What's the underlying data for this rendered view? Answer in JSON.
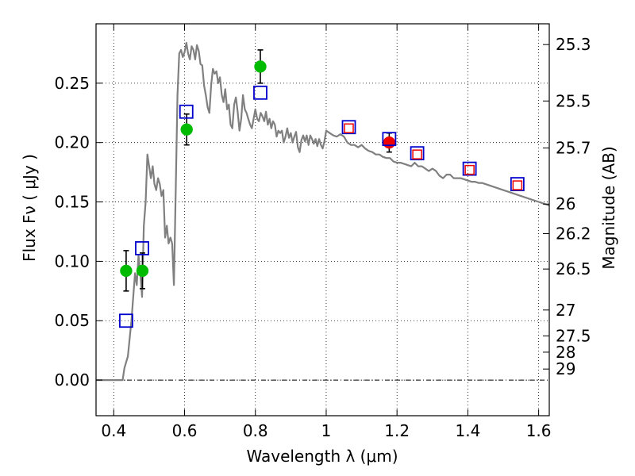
{
  "chart_data": {
    "type": "scatter",
    "title": "",
    "xlabel": "Wavelength  λ (μm)",
    "ylabel": "Flux  Fν ( μJy )",
    "y2label": "Magnitude (AB)",
    "xlim": [
      0.35,
      1.63
    ],
    "ylim": [
      -0.03,
      0.3
    ],
    "grid": true,
    "x_ticks": [
      0.4,
      0.6,
      0.8,
      1.0,
      1.2,
      1.4,
      1.6
    ],
    "x_tick_labels": [
      "0.4",
      "0.6",
      "0.8",
      "1",
      "1.2",
      "1.4",
      "1.6"
    ],
    "y_ticks": [
      0.0,
      0.05,
      0.1,
      0.15,
      0.2,
      0.25
    ],
    "y_tick_labels": [
      "0.00",
      "0.05",
      "0.10",
      "0.15",
      "0.20",
      "0.25"
    ],
    "y2_ticks": [
      {
        "label": "25.3",
        "flux": 0.2825
      },
      {
        "label": "25.5",
        "flux": 0.235
      },
      {
        "label": "25.7",
        "flux": 0.1954
      },
      {
        "label": "26",
        "flux": 0.1482
      },
      {
        "label": "26.2",
        "flux": 0.1233
      },
      {
        "label": "26.5",
        "flux": 0.0935
      },
      {
        "label": "27",
        "flux": 0.059
      },
      {
        "label": "27.5",
        "flux": 0.0372
      },
      {
        "label": "28",
        "flux": 0.0235
      },
      {
        "label": "29",
        "flux": 0.0093
      }
    ],
    "series": [
      {
        "type": "line",
        "color": "#808080",
        "x": [
          0.35,
          0.42,
          0.425,
          0.43,
          0.44,
          0.45,
          0.46,
          0.465,
          0.47,
          0.475,
          0.48,
          0.485,
          0.49,
          0.495,
          0.5,
          0.505,
          0.51,
          0.515,
          0.52,
          0.525,
          0.53,
          0.535,
          0.54,
          0.545,
          0.55,
          0.555,
          0.56,
          0.565,
          0.57,
          0.575,
          0.58,
          0.585,
          0.59,
          0.595,
          0.6,
          0.605,
          0.61,
          0.615,
          0.62,
          0.625,
          0.63,
          0.635,
          0.64,
          0.645,
          0.65,
          0.655,
          0.66,
          0.665,
          0.67,
          0.675,
          0.68,
          0.685,
          0.69,
          0.695,
          0.7,
          0.705,
          0.71,
          0.715,
          0.72,
          0.725,
          0.73,
          0.735,
          0.74,
          0.745,
          0.75,
          0.755,
          0.76,
          0.765,
          0.77,
          0.775,
          0.78,
          0.785,
          0.79,
          0.795,
          0.8,
          0.805,
          0.81,
          0.815,
          0.82,
          0.825,
          0.83,
          0.835,
          0.84,
          0.845,
          0.85,
          0.855,
          0.86,
          0.865,
          0.87,
          0.875,
          0.88,
          0.885,
          0.89,
          0.895,
          0.9,
          0.905,
          0.91,
          0.915,
          0.92,
          0.925,
          0.93,
          0.935,
          0.94,
          0.945,
          0.95,
          0.955,
          0.96,
          0.965,
          0.97,
          0.975,
          0.98,
          0.985,
          0.99,
          0.995,
          1.0,
          1.01,
          1.02,
          1.03,
          1.04,
          1.05,
          1.06,
          1.07,
          1.08,
          1.09,
          1.1,
          1.11,
          1.12,
          1.13,
          1.14,
          1.15,
          1.16,
          1.17,
          1.18,
          1.19,
          1.2,
          1.21,
          1.22,
          1.23,
          1.24,
          1.25,
          1.26,
          1.27,
          1.28,
          1.29,
          1.3,
          1.31,
          1.32,
          1.33,
          1.34,
          1.35,
          1.36,
          1.37,
          1.38,
          1.39,
          1.4,
          1.41,
          1.42,
          1.43,
          1.44,
          1.45,
          1.46,
          1.47,
          1.48,
          1.49,
          1.5,
          1.51,
          1.52,
          1.53,
          1.54,
          1.55,
          1.56,
          1.57,
          1.58,
          1.59,
          1.6,
          1.61,
          1.62,
          1.63
        ],
        "y": [
          0.0,
          0.0,
          0.0,
          0.01,
          0.02,
          0.05,
          0.09,
          0.08,
          0.105,
          0.09,
          0.07,
          0.13,
          0.15,
          0.19,
          0.18,
          0.17,
          0.18,
          0.165,
          0.16,
          0.17,
          0.165,
          0.155,
          0.16,
          0.12,
          0.13,
          0.115,
          0.12,
          0.115,
          0.08,
          0.16,
          0.24,
          0.275,
          0.278,
          0.272,
          0.276,
          0.284,
          0.275,
          0.27,
          0.281,
          0.278,
          0.27,
          0.282,
          0.277,
          0.266,
          0.265,
          0.248,
          0.24,
          0.23,
          0.225,
          0.248,
          0.262,
          0.258,
          0.26,
          0.25,
          0.255,
          0.24,
          0.234,
          0.245,
          0.228,
          0.232,
          0.215,
          0.212,
          0.232,
          0.238,
          0.226,
          0.21,
          0.22,
          0.24,
          0.228,
          0.225,
          0.22,
          0.215,
          0.212,
          0.22,
          0.228,
          0.22,
          0.218,
          0.225,
          0.222,
          0.218,
          0.226,
          0.215,
          0.22,
          0.212,
          0.218,
          0.215,
          0.205,
          0.21,
          0.208,
          0.21,
          0.2,
          0.205,
          0.212,
          0.204,
          0.208,
          0.2,
          0.205,
          0.209,
          0.196,
          0.192,
          0.202,
          0.206,
          0.201,
          0.206,
          0.198,
          0.206,
          0.203,
          0.199,
          0.203,
          0.197,
          0.203,
          0.198,
          0.195,
          0.201,
          0.21,
          0.208,
          0.206,
          0.205,
          0.207,
          0.205,
          0.2,
          0.198,
          0.198,
          0.196,
          0.198,
          0.195,
          0.193,
          0.192,
          0.19,
          0.19,
          0.188,
          0.187,
          0.187,
          0.184,
          0.183,
          0.183,
          0.182,
          0.181,
          0.18,
          0.183,
          0.18,
          0.18,
          0.178,
          0.176,
          0.178,
          0.176,
          0.172,
          0.17,
          0.173,
          0.173,
          0.17,
          0.17,
          0.17,
          0.169,
          0.168,
          0.167,
          0.167,
          0.166,
          0.166,
          0.165,
          0.164,
          0.163,
          0.162,
          0.161,
          0.16,
          0.159,
          0.158,
          0.157,
          0.156,
          0.155,
          0.154,
          0.153,
          0.152,
          0.151,
          0.15,
          0.149,
          0.148,
          0.147
        ]
      },
      {
        "type": "scatter",
        "marker": "circle",
        "color": "#00bb00",
        "x": [
          0.435,
          0.481,
          0.606,
          0.814
        ],
        "y": [
          0.092,
          0.092,
          0.211,
          0.264
        ],
        "yerr": [
          0.017,
          0.015,
          0.013,
          0.014
        ]
      },
      {
        "type": "scatter",
        "marker": "circle",
        "color": "#ee0000",
        "x": [
          1.178
        ],
        "y": [
          0.2
        ],
        "yerr": [
          0.008
        ]
      },
      {
        "type": "scatter",
        "marker": "open-square",
        "color": "#0000cc",
        "x": [
          0.435,
          0.48,
          0.605,
          0.814,
          1.064,
          1.178,
          1.257,
          1.405,
          1.54
        ],
        "y": [
          0.05,
          0.111,
          0.226,
          0.242,
          0.213,
          0.203,
          0.191,
          0.178,
          0.165
        ]
      },
      {
        "type": "scatter",
        "marker": "open-square-small",
        "color": "#ee0000",
        "x": [
          1.064,
          1.257,
          1.405,
          1.54
        ],
        "y": [
          0.212,
          0.19,
          0.177,
          0.164
        ]
      }
    ]
  }
}
